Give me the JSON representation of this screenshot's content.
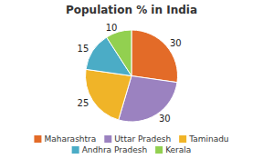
{
  "chart_data": {
    "type": "pie",
    "title": "Population % in India",
    "categories": [
      "Maharashtra",
      "Uttar Pradesh",
      "Taminadu",
      "Andhra Pradesh",
      "Kerala"
    ],
    "values": [
      30,
      30,
      25,
      15,
      10
    ],
    "colors": [
      "#e36b28",
      "#9b82c0",
      "#f0b428",
      "#4bacc6",
      "#92d050"
    ],
    "data_labels": true,
    "legend": "bottom"
  }
}
